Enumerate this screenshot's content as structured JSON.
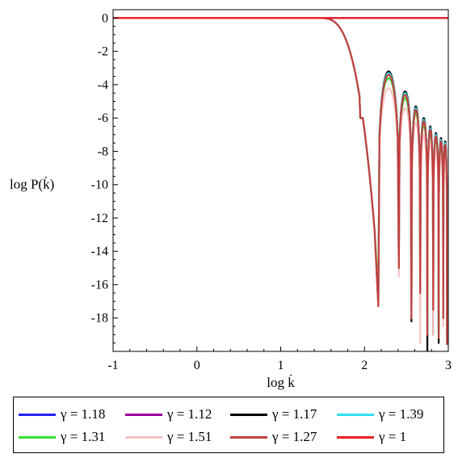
{
  "chart_data": {
    "type": "line",
    "xlabel": "log k̇",
    "ylabel": "log P(k̇)",
    "xlim": [
      -1,
      3
    ],
    "ylim": [
      -20,
      0.5
    ],
    "x_ticks": [
      "-1",
      "0",
      "1",
      "2",
      "3"
    ],
    "y_ticks": [
      "0",
      "-2",
      "-4",
      "-6",
      "-8",
      "-10",
      "-12",
      "-14",
      "-16",
      "-18"
    ],
    "x_tick_values": [
      -1,
      0,
      1,
      2,
      3
    ],
    "y_tick_values": [
      0,
      -2,
      -4,
      -6,
      -8,
      -10,
      -12,
      -14,
      -16,
      -18
    ],
    "grid": false,
    "legend_position": "bottom",
    "series": [
      {
        "name": "γ = 1.18",
        "color": "#2323ff",
        "style": "flat",
        "x": [
          -1,
          3
        ],
        "y": [
          0,
          0
        ]
      },
      {
        "name": "γ = 1.12",
        "color": "#990099",
        "style": "flat",
        "x": [
          -1,
          3
        ],
        "y": [
          0,
          0
        ]
      },
      {
        "name": "γ = 1.17",
        "color": "#000000",
        "style": "oscillating",
        "first_peak": -3.2,
        "tip_depths": [
          -17.2,
          -15.0,
          -18.2,
          -16.8,
          -20.0,
          -19.0,
          -19.5,
          -18.0,
          -19.6
        ]
      },
      {
        "name": "γ = 1.39",
        "color": "#33e0f0",
        "style": "oscillating",
        "first_peak": -3.3,
        "tip_depths": [
          -17.0,
          -15.3,
          -18.0,
          -16.6,
          -19.0,
          -17.5,
          -19.0,
          -17.8,
          -19.6
        ]
      },
      {
        "name": "γ = 1.31",
        "color": "#33e033",
        "style": "oscillating",
        "first_peak": -3.6,
        "tip_depths": [
          -16.2,
          -15.0,
          -17.5,
          -16.2,
          -18.8,
          -17.0,
          -19.0,
          -17.6,
          -19.5
        ]
      },
      {
        "name": "γ = 1.51",
        "color": "#f7c4c4",
        "style": "oscillating",
        "first_peak": -4.2,
        "tip_depths": [
          -17.0,
          -15.5,
          -18.0,
          -19.5,
          -18.5,
          -19.0,
          -17.5,
          -18.5,
          -19.6
        ]
      },
      {
        "name": "γ = 1.27",
        "color": "#c04040",
        "style": "oscillating",
        "first_peak": -3.4,
        "tip_depths": [
          -17.3,
          -15.0,
          -18.0,
          -16.5,
          -19.0,
          -17.5,
          -19.2,
          -18.0,
          -19.6
        ]
      },
      {
        "name": "γ = 1",
        "color": "#ee2020",
        "style": "flat",
        "x": [
          -1,
          3
        ],
        "y": [
          0,
          0
        ]
      }
    ]
  }
}
